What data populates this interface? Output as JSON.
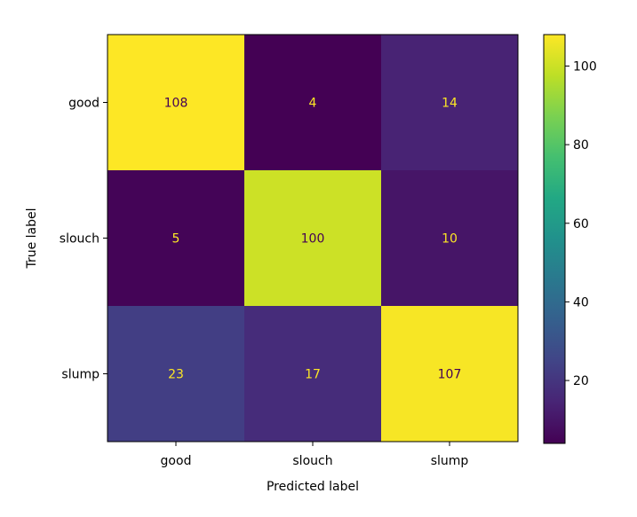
{
  "chart_data": {
    "type": "heatmap",
    "title": "",
    "xlabel": "Predicted label",
    "ylabel": "True label",
    "x_categories": [
      "good",
      "slouch",
      "slump"
    ],
    "y_categories": [
      "good",
      "slouch",
      "slump"
    ],
    "values": [
      [
        108,
        4,
        14
      ],
      [
        5,
        100,
        10
      ],
      [
        23,
        17,
        107
      ]
    ],
    "colormap": "viridis",
    "colorbar": {
      "min": 4,
      "max": 108,
      "ticks": [
        20,
        40,
        60,
        80,
        100
      ]
    },
    "annotation_colors": {
      "on_dark": "#fde725",
      "on_light": "#440154"
    },
    "grid": false
  }
}
